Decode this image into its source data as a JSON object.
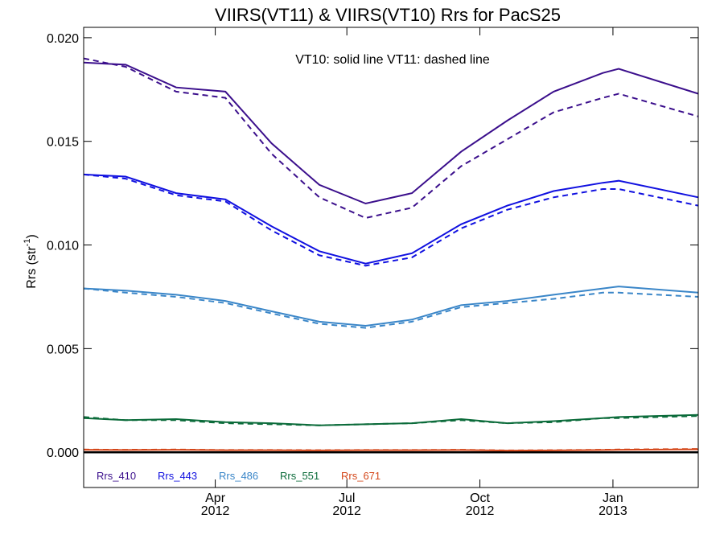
{
  "chart_data": {
    "type": "line",
    "title": "VIIRS(VT11) & VIIRS(VT10)  Rrs for PacS25",
    "ylabel_base": "Rrs (str",
    "ylabel_sup": "-1",
    "ylabel_end": ")",
    "annotation": "VT10: solid line   VT11: dashed line",
    "ylim": [
      -0.0017,
      0.0205
    ],
    "xlim": [
      "2012-01-01",
      "2013-03-01"
    ],
    "yticks": [
      0.0,
      0.005,
      0.01,
      0.015,
      0.02
    ],
    "ytick_labels": [
      "0.000",
      "0.005",
      "0.010",
      "0.015",
      "0.020"
    ],
    "xticks": [
      {
        "date": "2012-04-01",
        "month": "Apr",
        "year": "2012"
      },
      {
        "date": "2012-07-01",
        "month": "Jul",
        "year": "2012"
      },
      {
        "date": "2012-10-01",
        "month": "Oct",
        "year": "2012"
      },
      {
        "date": "2013-01-01",
        "month": "Jan",
        "year": "2013"
      }
    ],
    "x": [
      "2012-01-01",
      "2012-01-30",
      "2012-03-05",
      "2012-04-08",
      "2012-05-10",
      "2012-06-12",
      "2012-07-14",
      "2012-08-15",
      "2012-09-18",
      "2012-10-20",
      "2012-11-21",
      "2012-12-25",
      "2013-01-05",
      "2013-03-01"
    ],
    "series": [
      {
        "name": "Rrs_410",
        "color": "#3b0f8c",
        "solid": [
          0.0188,
          0.0187,
          0.0176,
          0.0174,
          0.0149,
          0.0129,
          0.012,
          0.0125,
          0.0145,
          0.016,
          0.0174,
          0.0183,
          0.0185,
          0.0173
        ],
        "dashed": [
          0.019,
          0.0186,
          0.0174,
          0.0171,
          0.0144,
          0.0123,
          0.0113,
          0.0118,
          0.0138,
          0.0151,
          0.0164,
          0.0171,
          0.0173,
          0.0162
        ]
      },
      {
        "name": "Rrs_443",
        "color": "#1010e0",
        "solid": [
          0.0134,
          0.0133,
          0.0125,
          0.0122,
          0.0109,
          0.0097,
          0.0091,
          0.0096,
          0.011,
          0.0119,
          0.0126,
          0.013,
          0.0131,
          0.0123
        ],
        "dashed": [
          0.0134,
          0.0132,
          0.0124,
          0.0121,
          0.0107,
          0.0095,
          0.009,
          0.0094,
          0.0108,
          0.0117,
          0.0123,
          0.0127,
          0.0127,
          0.0119
        ],
        "label_offset": 0
      },
      {
        "name": "Rrs_486",
        "color": "#3a86c8",
        "solid": [
          0.0079,
          0.0078,
          0.0076,
          0.0073,
          0.0068,
          0.0063,
          0.0061,
          0.0064,
          0.0071,
          0.0073,
          0.0076,
          0.0079,
          0.008,
          0.0077
        ],
        "dashed": [
          0.0079,
          0.0077,
          0.0075,
          0.0072,
          0.0067,
          0.0062,
          0.006,
          0.0063,
          0.007,
          0.0072,
          0.0074,
          0.0077,
          0.0077,
          0.0075
        ]
      },
      {
        "name": "Rrs_551",
        "color": "#0b6b3a",
        "solid": [
          0.00165,
          0.00155,
          0.0016,
          0.00145,
          0.0014,
          0.0013,
          0.00135,
          0.0014,
          0.0016,
          0.0014,
          0.0015,
          0.00165,
          0.0017,
          0.0018
        ],
        "dashed": [
          0.0017,
          0.00155,
          0.00155,
          0.0014,
          0.00135,
          0.0013,
          0.00135,
          0.0014,
          0.00155,
          0.0014,
          0.00145,
          0.00165,
          0.00165,
          0.00175
        ]
      },
      {
        "name": "Rrs_671",
        "color": "#d4471a",
        "solid": [
          0.00012,
          0.00011,
          0.00012,
          0.0001,
          0.0001,
          9e-05,
          0.0001,
          0.0001,
          0.00011,
          8e-05,
          9e-05,
          0.00011,
          0.00012,
          0.00014
        ],
        "dashed": [
          0.00013,
          0.00012,
          0.00013,
          0.00011,
          0.00011,
          0.0001,
          0.00011,
          0.00011,
          0.00012,
          9e-05,
          0.0001,
          0.00012,
          0.00013,
          0.00016
        ]
      }
    ],
    "zero_line": 0.0,
    "legend_position": "bottom-left",
    "grid": false
  }
}
